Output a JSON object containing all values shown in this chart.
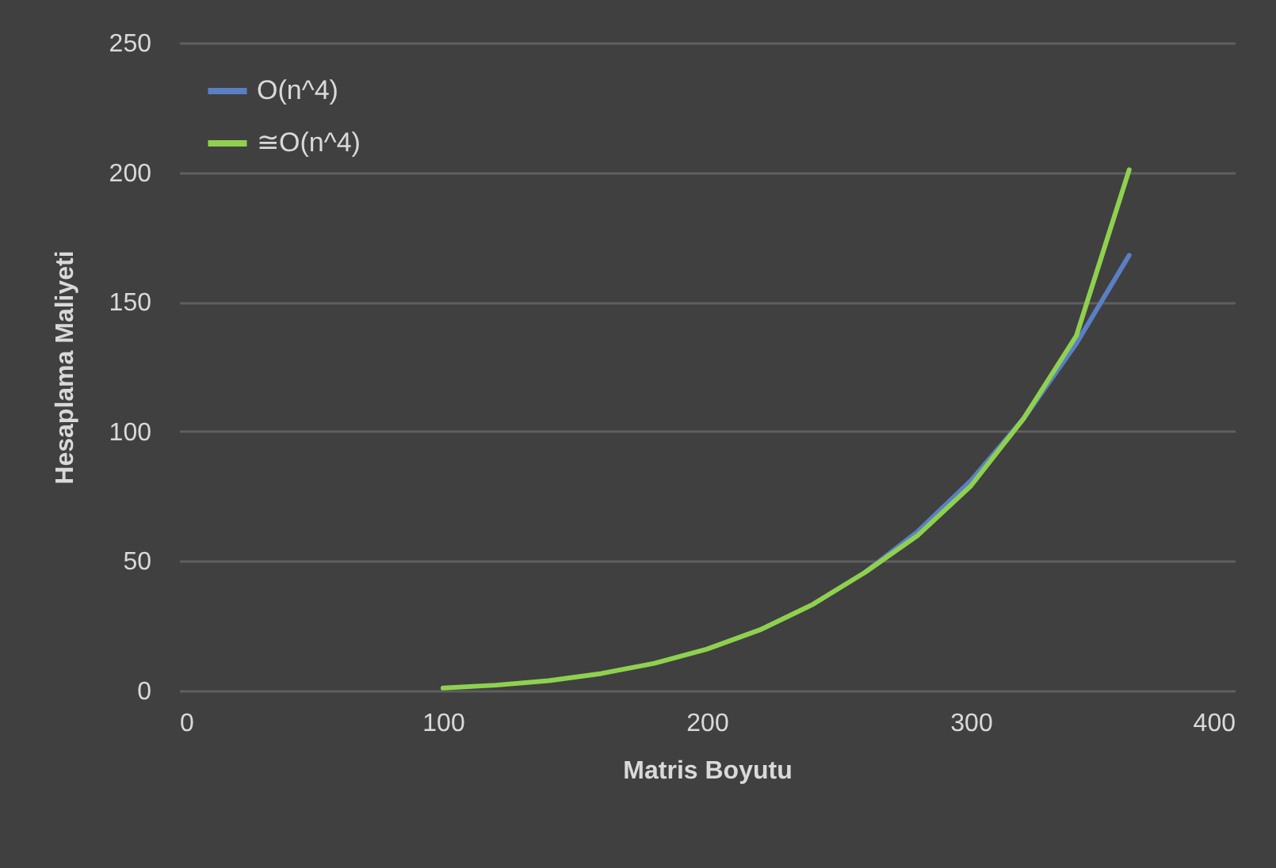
{
  "chart_data": {
    "type": "line",
    "xlabel": "Matris Boyutu",
    "ylabel": "Hesaplama Maliyeti",
    "x": [
      100,
      120,
      140,
      160,
      180,
      200,
      220,
      240,
      260,
      280,
      300,
      320,
      340,
      360
    ],
    "series": [
      {
        "name": "O(n^4)",
        "color": "#5b7fc4",
        "values": [
          null,
          null,
          null,
          null,
          null,
          null,
          null,
          null,
          45.7,
          61.5,
          81,
          105,
          134,
          168
        ]
      },
      {
        "name": "≅O(n^4)",
        "color": "#8fd14f",
        "values": [
          1,
          2.1,
          3.8,
          6.6,
          10.5,
          16,
          23.4,
          33.2,
          45.7,
          60,
          79,
          105,
          137,
          201
        ]
      }
    ],
    "xlim": [
      0,
      400
    ],
    "xticks": [
      0,
      100,
      200,
      300,
      400
    ],
    "ylim": [
      0,
      250
    ],
    "yticks": [
      0,
      50,
      100,
      150,
      200,
      250
    ],
    "grid": "y",
    "legend": "top left",
    "marker": "none",
    "line_style": "solid"
  }
}
